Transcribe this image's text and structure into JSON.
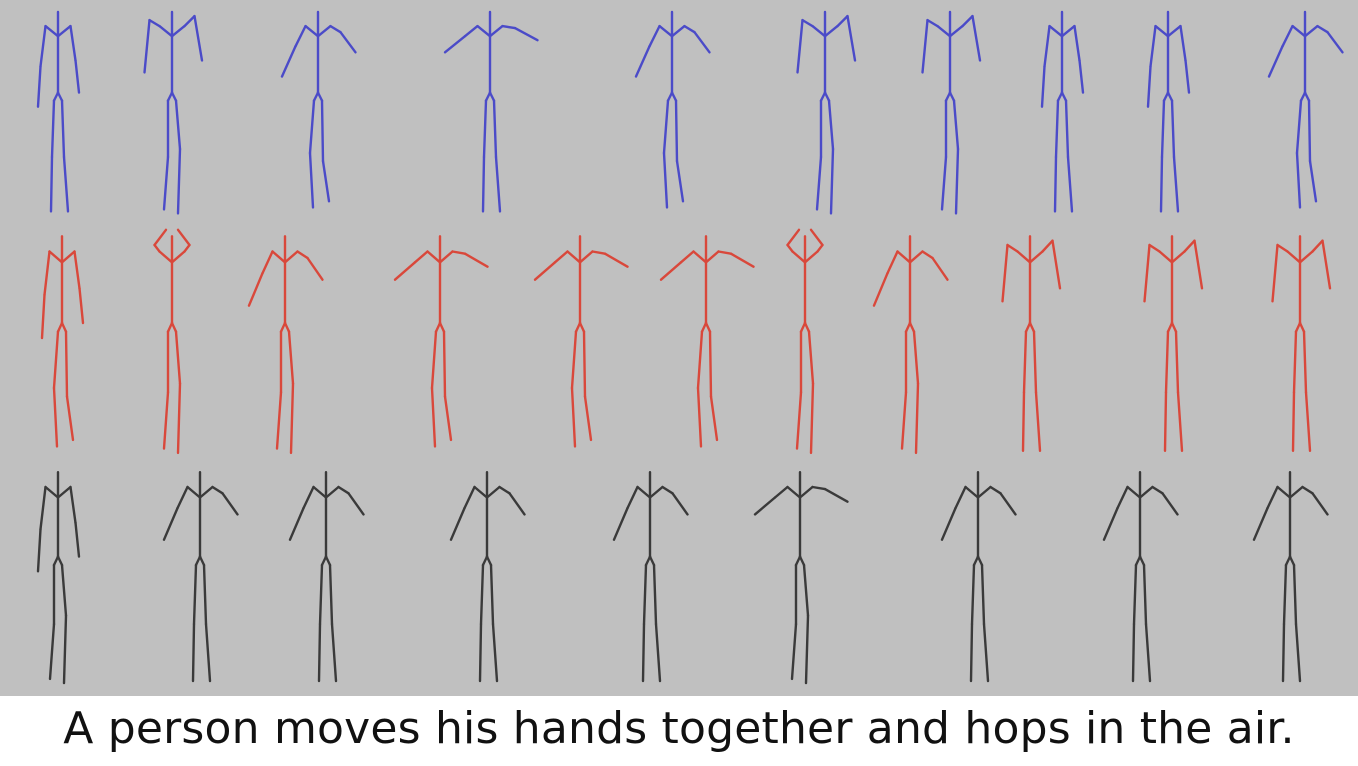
{
  "caption": "A person moves his hands together and hops in the air.",
  "colors": {
    "background": "#c0c0c0",
    "row_1": "#4b4bc8",
    "row_2": "#d9483b",
    "row_3": "#3a3a3a",
    "caption_text": "#111111"
  },
  "rows": [
    {
      "name": "row-1",
      "color_key": "row_1",
      "figure_count": 10
    },
    {
      "name": "row-2",
      "color_key": "row_2",
      "figure_count": 11
    },
    {
      "name": "row-3",
      "color_key": "row_3",
      "figure_count": 9
    }
  ]
}
